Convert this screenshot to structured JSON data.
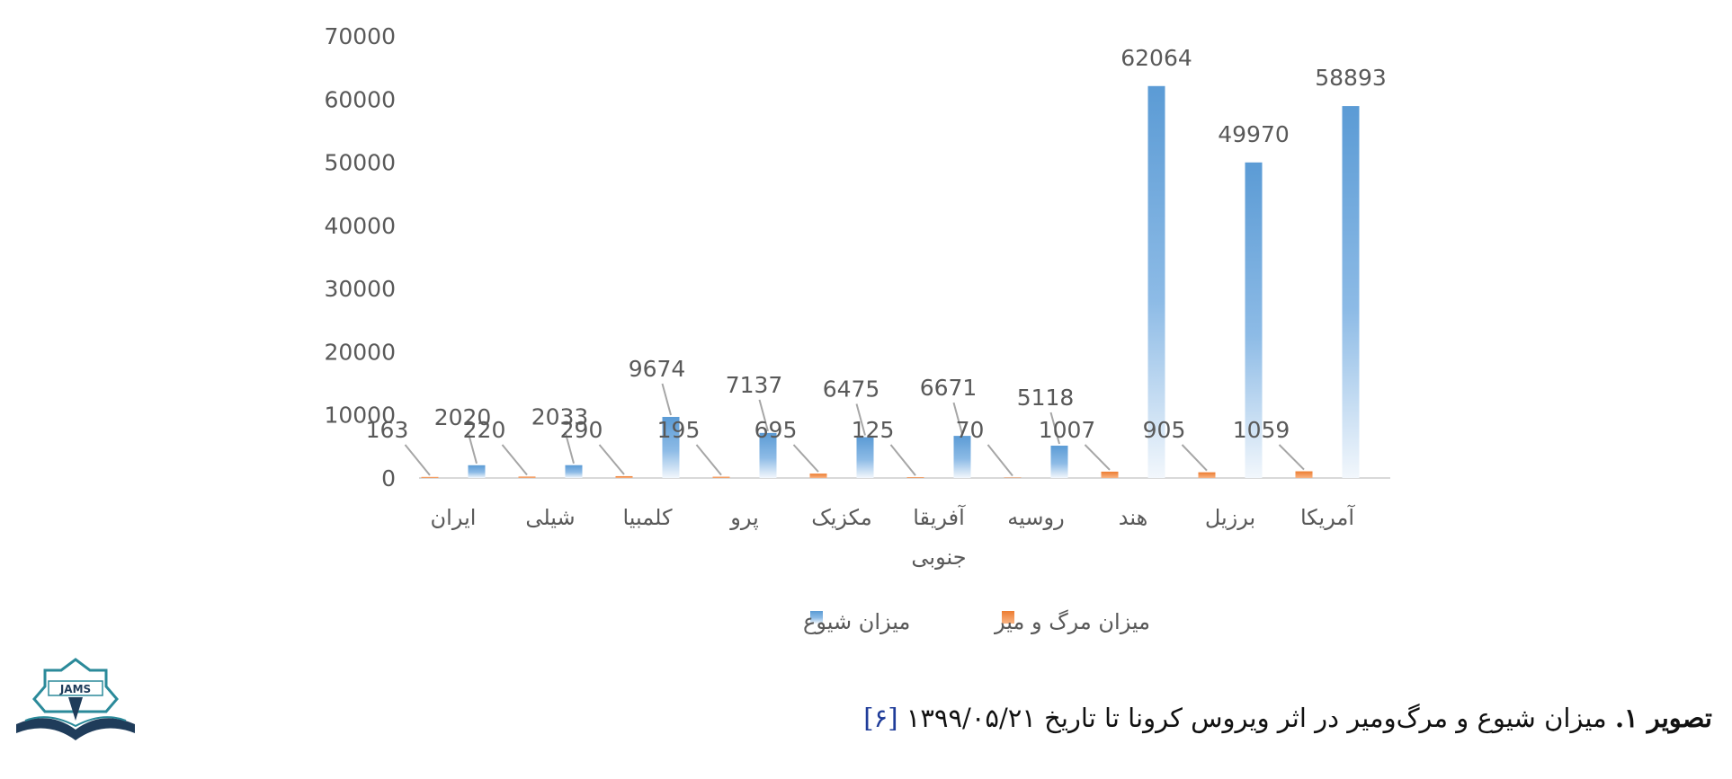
{
  "chart_data": {
    "type": "bar",
    "categories": [
      [
        "آمریکا"
      ],
      [
        "برزیل"
      ],
      [
        "هند"
      ],
      [
        "روسیه"
      ],
      [
        "آفریقا",
        "جنوبی"
      ],
      [
        "مکزیک"
      ],
      [
        "پرو"
      ],
      [
        "کلمبیا"
      ],
      [
        "شیلی"
      ],
      [
        "ایران"
      ]
    ],
    "series": [
      {
        "name": "میزان مرگ و میر",
        "color": "#ED7D31",
        "values": [
          1059,
          905,
          1007,
          70,
          125,
          695,
          195,
          290,
          220,
          163
        ]
      },
      {
        "name": "میزان شیوع",
        "color": "#5B9BD5",
        "values": [
          58893,
          49970,
          62064,
          5118,
          6671,
          6475,
          7137,
          9674,
          2033,
          2020
        ]
      }
    ],
    "y_ticks": [
      "0",
      "10000",
      "20000",
      "30000",
      "40000",
      "50000",
      "60000",
      "70000"
    ],
    "ylim": [
      0,
      70000
    ],
    "legend_position": "bottom",
    "grid": false,
    "category_order": "right-to-left"
  },
  "caption": {
    "bold": "تصویر ۱.",
    "text": " میزان شیوع و مرگ‌ومیر در اثر ویروس کرونا تا تاریخ ۱۳۹۹/۰۵/۲۱ ",
    "ref": "[۶]"
  },
  "logo": {
    "text": "JAMS"
  }
}
